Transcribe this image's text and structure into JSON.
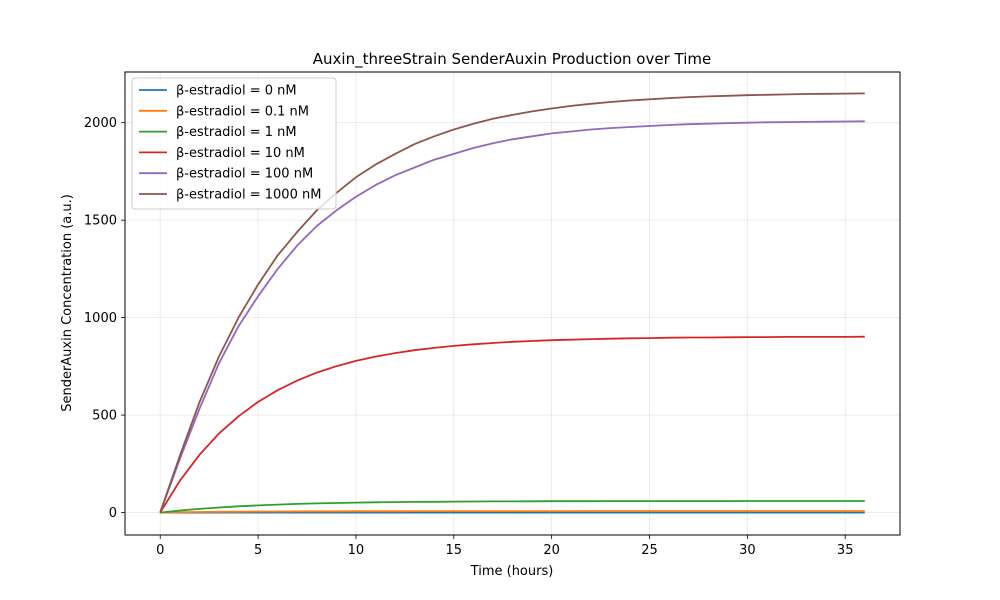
{
  "chart_data": {
    "type": "line",
    "title": "Auxin_threeStrain SenderAuxin Production over Time",
    "xlabel": "Time (hours)",
    "ylabel": "SenderAuxin Concentration (a.u.)",
    "xlim": [
      -1.8,
      37.8
    ],
    "ylim": [
      -115,
      2260
    ],
    "xticks": [
      0,
      5,
      10,
      15,
      20,
      25,
      30,
      35
    ],
    "yticks": [
      0,
      500,
      1000,
      1500,
      2000
    ],
    "grid": true,
    "legend_position": "top-left",
    "x": [
      0,
      1,
      2,
      3,
      4,
      5,
      6,
      7,
      8,
      9,
      10,
      11,
      12,
      13,
      14,
      15,
      16,
      17,
      18,
      19,
      20,
      21,
      22,
      23,
      24,
      25,
      26,
      27,
      28,
      29,
      30,
      31,
      32,
      33,
      34,
      35,
      36
    ],
    "series": [
      {
        "name": "β-estradiol = 0 nM",
        "color": "#1f77b4",
        "values": [
          0,
          0,
          0,
          0,
          0,
          0,
          0,
          0,
          0,
          0,
          0,
          0,
          0,
          0,
          0,
          0,
          0,
          0,
          0,
          0,
          0,
          0,
          0,
          0,
          0,
          0,
          0,
          0,
          0,
          0,
          0,
          0,
          0,
          0,
          0,
          0,
          0
        ]
      },
      {
        "name": "β-estradiol = 0.1 nM",
        "color": "#ff7f0e",
        "values": [
          0,
          1.7,
          2.9,
          3.9,
          4.7,
          5.3,
          5.8,
          6.2,
          6.5,
          6.8,
          7.0,
          7.1,
          7.3,
          7.4,
          7.5,
          7.6,
          7.6,
          7.7,
          7.7,
          7.8,
          7.8,
          7.8,
          7.9,
          7.9,
          7.9,
          7.9,
          7.9,
          7.9,
          7.9,
          7.9,
          8.0,
          8.0,
          8.0,
          8.0,
          8.0,
          8.0,
          8.0
        ]
      },
      {
        "name": "β-estradiol = 1 nM",
        "color": "#2ca02c",
        "values": [
          0,
          10.5,
          19.1,
          26.3,
          32.1,
          37.0,
          41.0,
          44.3,
          47.0,
          49.2,
          51.0,
          52.5,
          53.7,
          54.7,
          55.5,
          56.2,
          56.8,
          57.2,
          57.6,
          57.9,
          58.2,
          58.4,
          58.5,
          58.7,
          58.8,
          58.9,
          59.0,
          59.0,
          59.1,
          59.1,
          59.2,
          59.2,
          59.2,
          59.2,
          59.3,
          59.3,
          59.3
        ]
      },
      {
        "name": "β-estradiol = 10 nM",
        "color": "#d62728",
        "values": [
          0,
          163,
          296,
          405,
          494,
          568,
          628,
          677,
          718,
          751,
          778,
          800,
          818,
          833,
          845,
          855,
          863,
          870,
          876,
          880,
          884,
          887,
          890,
          892,
          894,
          895,
          897,
          898,
          898,
          899,
          900,
          900,
          901,
          901,
          901,
          901,
          902
        ]
      },
      {
        "name": "β-estradiol = 100 nM",
        "color": "#9467bd",
        "values": [
          0,
          274,
          532,
          765,
          956,
          1110,
          1250,
          1370,
          1470,
          1550,
          1620,
          1680,
          1730,
          1770,
          1810,
          1840,
          1870,
          1895,
          1915,
          1930,
          1945,
          1955,
          1965,
          1972,
          1978,
          1983,
          1988,
          1992,
          1995,
          1998,
          2000,
          2002,
          2003,
          2004,
          2005,
          2006,
          2007
        ]
      },
      {
        "name": "β-estradiol = 1000 nM",
        "color": "#8c564b",
        "values": [
          0,
          291,
          565,
          800,
          1000,
          1170,
          1320,
          1440,
          1550,
          1640,
          1720,
          1785,
          1840,
          1890,
          1930,
          1965,
          1995,
          2020,
          2040,
          2058,
          2073,
          2086,
          2097,
          2106,
          2114,
          2120,
          2126,
          2131,
          2135,
          2138,
          2141,
          2143,
          2145,
          2147,
          2148,
          2149,
          2150
        ]
      }
    ]
  }
}
